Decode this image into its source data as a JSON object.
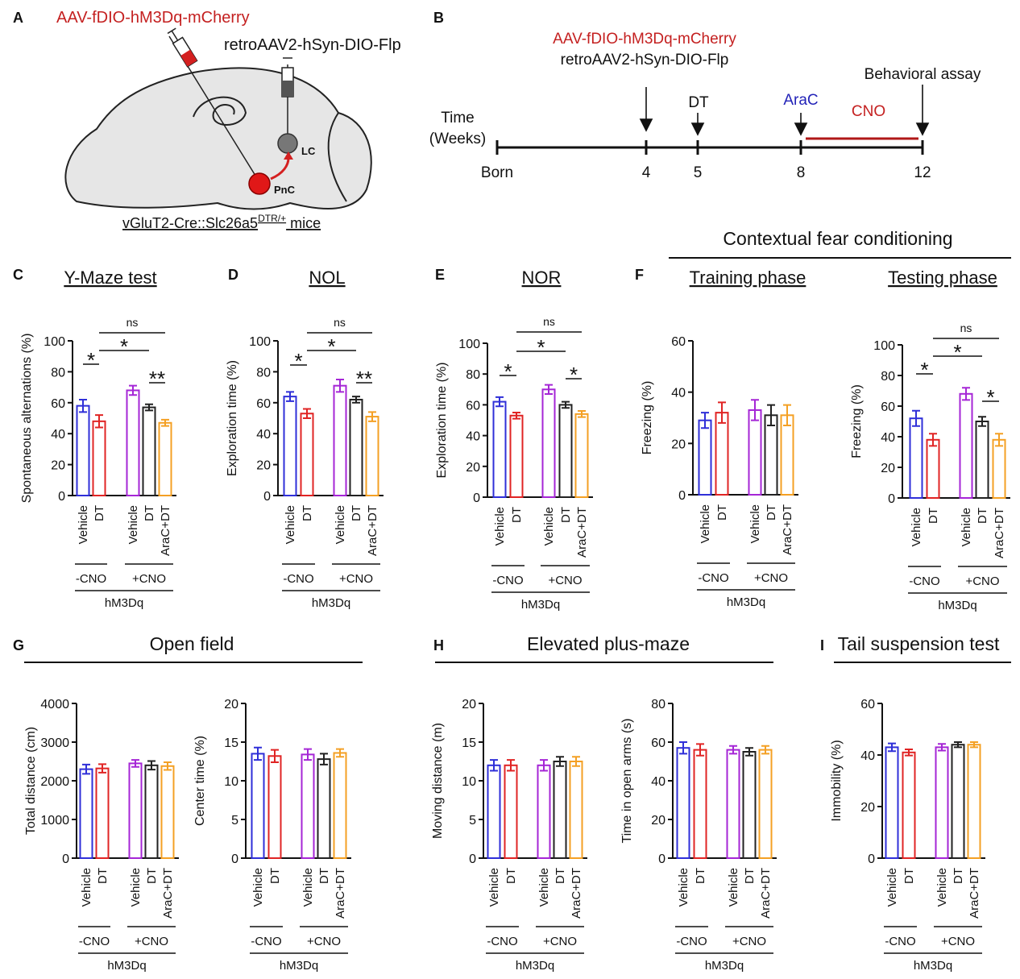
{
  "diagram_a": {
    "panel": "A",
    "virus": "AAV-fDIO-hM3Dq-mCherry",
    "retro": "retroAAV2-hSyn-DIO-Flp",
    "lc": "LC",
    "pnc": "PnC",
    "mice_prefix": "vGluT2-Cre::Slc26a5",
    "mice_sup": "DTR/+",
    "mice_suffix": " mice"
  },
  "diagram_b": {
    "panel": "B",
    "virus": "AAV-fDIO-hM3Dq-mCherry",
    "retro": "retroAAV2-hSyn-DIO-Flp",
    "time1": "Time",
    "time2": "(Weeks)",
    "dt": "DT",
    "arac": "AraC",
    "cno": "CNO",
    "assay": "Behavioral assay",
    "timeline": [
      "Born",
      "4",
      "5",
      "8",
      "12"
    ]
  },
  "sections": [
    {
      "panel": "F",
      "title": "Contextual fear conditioning"
    },
    {
      "panel": "G",
      "title": "Open field"
    },
    {
      "panel": "H",
      "title": "Elevated plus-maze"
    },
    {
      "panel": "I",
      "title": "Tail suspension test"
    }
  ],
  "chart_data": [
    {
      "type": "bar",
      "panel": "C",
      "title": "Y-Maze test",
      "ylabel": "Spontaneous alternations (%)",
      "categories": [
        "Vehicle",
        "DT",
        "Vehicle",
        "DT",
        "AraC+DT"
      ],
      "values": [
        58,
        48,
        68,
        57,
        47
      ],
      "errors": [
        4,
        4,
        3,
        2,
        2
      ],
      "colors": [
        "#2f2fd8",
        "#e02424",
        "#a526d6",
        "#222222",
        "#f4a024"
      ],
      "ylim": [
        0,
        100
      ],
      "yticks": [
        0,
        20,
        40,
        60,
        80,
        100
      ],
      "groups": [
        "-CNO",
        "+CNO"
      ],
      "genotype": "hM3Dq",
      "annotations": [
        "*",
        "*",
        "ns",
        "**"
      ]
    },
    {
      "type": "bar",
      "panel": "D",
      "title": "NOL",
      "ylabel": "Exploration time (%)",
      "categories": [
        "Vehicle",
        "DT",
        "Vehicle",
        "DT",
        "AraC+DT"
      ],
      "values": [
        64,
        53,
        71,
        62,
        51
      ],
      "errors": [
        3,
        3,
        4,
        2,
        3
      ],
      "colors": [
        "#2f2fd8",
        "#e02424",
        "#a526d6",
        "#222222",
        "#f4a024"
      ],
      "ylim": [
        0,
        100
      ],
      "yticks": [
        0,
        20,
        40,
        60,
        80,
        100
      ],
      "groups": [
        "-CNO",
        "+CNO"
      ],
      "genotype": "hM3Dq",
      "annotations": [
        "*",
        "*",
        "ns",
        "**"
      ]
    },
    {
      "type": "bar",
      "panel": "E",
      "title": "NOR",
      "ylabel": "Exploration time (%)",
      "categories": [
        "Vehicle",
        "DT",
        "Vehicle",
        "DT",
        "AraC+DT"
      ],
      "values": [
        62,
        53,
        70,
        60,
        54
      ],
      "errors": [
        3,
        2,
        3,
        2,
        2
      ],
      "colors": [
        "#2f2fd8",
        "#e02424",
        "#a526d6",
        "#222222",
        "#f4a024"
      ],
      "ylim": [
        0,
        100
      ],
      "yticks": [
        0,
        20,
        40,
        60,
        80,
        100
      ],
      "groups": [
        "-CNO",
        "+CNO"
      ],
      "genotype": "hM3Dq",
      "annotations": [
        "*",
        "*",
        "ns",
        "*"
      ]
    },
    {
      "type": "bar",
      "panel": "F",
      "title": "Training phase",
      "ylabel": "Freezing (%)",
      "categories": [
        "Vehicle",
        "DT",
        "Vehicle",
        "DT",
        "AraC+DT"
      ],
      "values": [
        29,
        32,
        33,
        31,
        31
      ],
      "errors": [
        3,
        4,
        4,
        4,
        4
      ],
      "colors": [
        "#2f2fd8",
        "#e02424",
        "#a526d6",
        "#222222",
        "#f4a024"
      ],
      "ylim": [
        0,
        60
      ],
      "yticks": [
        0,
        20,
        40,
        60
      ],
      "groups": [
        "-CNO",
        "+CNO"
      ],
      "genotype": "hM3Dq",
      "annotations": []
    },
    {
      "type": "bar",
      "title": "Testing phase",
      "ylabel": "Freezing (%)",
      "categories": [
        "Vehicle",
        "DT",
        "Vehicle",
        "DT",
        "AraC+DT"
      ],
      "values": [
        52,
        38,
        68,
        50,
        38
      ],
      "errors": [
        5,
        4,
        4,
        3,
        4
      ],
      "colors": [
        "#2f2fd8",
        "#e02424",
        "#a526d6",
        "#222222",
        "#f4a024"
      ],
      "ylim": [
        0,
        100
      ],
      "yticks": [
        0,
        20,
        40,
        60,
        80,
        100
      ],
      "groups": [
        "-CNO",
        "+CNO"
      ],
      "genotype": "hM3Dq",
      "annotations": [
        "*",
        "*",
        "ns",
        "*"
      ]
    },
    {
      "type": "bar",
      "ylabel": "Total distance (cm)",
      "categories": [
        "Vehicle",
        "DT",
        "Vehicle",
        "DT",
        "AraC+DT"
      ],
      "values": [
        2300,
        2320,
        2450,
        2400,
        2380
      ],
      "errors": [
        120,
        110,
        90,
        110,
        100
      ],
      "colors": [
        "#2f2fd8",
        "#e02424",
        "#a526d6",
        "#222222",
        "#f4a024"
      ],
      "ylim": [
        0,
        4000
      ],
      "yticks": [
        0,
        1000,
        2000,
        3000,
        4000
      ],
      "groups": [
        "-CNO",
        "+CNO"
      ],
      "genotype": "hM3Dq",
      "annotations": []
    },
    {
      "type": "bar",
      "ylabel": "Center time (%)",
      "categories": [
        "Vehicle",
        "DT",
        "Vehicle",
        "DT",
        "AraC+DT"
      ],
      "values": [
        13.5,
        13.2,
        13.4,
        12.8,
        13.6
      ],
      "errors": [
        0.8,
        0.8,
        0.7,
        0.7,
        0.5
      ],
      "colors": [
        "#2f2fd8",
        "#e02424",
        "#a526d6",
        "#222222",
        "#f4a024"
      ],
      "ylim": [
        0,
        20
      ],
      "yticks": [
        0,
        5,
        10,
        15,
        20
      ],
      "groups": [
        "-CNO",
        "+CNO"
      ],
      "genotype": "hM3Dq",
      "annotations": []
    },
    {
      "type": "bar",
      "ylabel": "Moving distance (m)",
      "categories": [
        "Vehicle",
        "DT",
        "Vehicle",
        "DT",
        "AraC+DT"
      ],
      "values": [
        12,
        12,
        12,
        12.5,
        12.5
      ],
      "errors": [
        0.7,
        0.7,
        0.7,
        0.6,
        0.6
      ],
      "colors": [
        "#2f2fd8",
        "#e02424",
        "#a526d6",
        "#222222",
        "#f4a024"
      ],
      "ylim": [
        0,
        20
      ],
      "yticks": [
        0,
        5,
        10,
        15,
        20
      ],
      "groups": [
        "-CNO",
        "+CNO"
      ],
      "genotype": "hM3Dq",
      "annotations": []
    },
    {
      "type": "bar",
      "ylabel": "Time in open arms (s)",
      "categories": [
        "Vehicle",
        "DT",
        "Vehicle",
        "DT",
        "AraC+DT"
      ],
      "values": [
        57,
        56,
        56,
        55,
        56
      ],
      "errors": [
        3,
        3,
        2,
        2,
        2
      ],
      "colors": [
        "#2f2fd8",
        "#e02424",
        "#a526d6",
        "#222222",
        "#f4a024"
      ],
      "ylim": [
        0,
        80
      ],
      "yticks": [
        0,
        20,
        40,
        60,
        80
      ],
      "groups": [
        "-CNO",
        "+CNO"
      ],
      "genotype": "hM3Dq",
      "annotations": []
    },
    {
      "type": "bar",
      "ylabel": "Immobility (%)",
      "categories": [
        "Vehicle",
        "DT",
        "Vehicle",
        "DT",
        "AraC+DT"
      ],
      "values": [
        43,
        41,
        43,
        44,
        44
      ],
      "errors": [
        1.5,
        1.2,
        1.3,
        1,
        1
      ],
      "colors": [
        "#2f2fd8",
        "#e02424",
        "#a526d6",
        "#222222",
        "#f4a024"
      ],
      "ylim": [
        0,
        60
      ],
      "yticks": [
        0,
        20,
        40,
        60
      ],
      "groups": [
        "-CNO",
        "+CNO"
      ],
      "genotype": "hM3Dq",
      "annotations": []
    }
  ]
}
